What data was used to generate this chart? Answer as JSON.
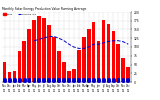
{
  "title": "Monthly Solar Energy Production Value Running Average",
  "months": [
    "Nov\n10",
    "Dec\n10",
    "Jan\n11",
    "Feb\n11",
    "Mar\n11",
    "Apr\n11",
    "May\n11",
    "Jun\n11",
    "Jul\n11",
    "Aug\n11",
    "Sep\n11",
    "Oct\n11",
    "Nov\n11",
    "Dec\n11",
    "Jan\n12",
    "Feb\n12",
    "Mar\n12",
    "Apr\n12",
    "May\n12",
    "Jun\n12",
    "Jul\n12",
    "Aug\n12",
    "Sep\n12",
    "Oct\n12",
    "Nov\n12",
    "Dec\n12"
  ],
  "bar_values": [
    58,
    28,
    32,
    88,
    118,
    152,
    178,
    188,
    182,
    162,
    128,
    88,
    58,
    32,
    38,
    92,
    128,
    152,
    172,
    118,
    178,
    165,
    145,
    108,
    68,
    42
  ],
  "small_values": [
    5,
    3,
    3,
    5,
    5,
    5,
    5,
    5,
    5,
    5,
    5,
    5,
    3,
    3,
    3,
    5,
    5,
    5,
    5,
    5,
    5,
    5,
    5,
    5,
    3,
    3
  ],
  "running_avg": [
    null,
    null,
    null,
    null,
    null,
    null,
    118,
    122,
    126,
    130,
    130,
    125,
    118,
    108,
    100,
    96,
    96,
    100,
    108,
    108,
    112,
    116,
    118,
    118,
    115,
    108
  ],
  "bar_color": "#FF0000",
  "small_color": "#0000CD",
  "avg_color": "#0000CD",
  "ylim": [
    0,
    200
  ],
  "yticks": [
    0,
    25,
    50,
    75,
    100,
    125,
    150,
    175,
    200
  ],
  "ytick_labels": [
    "0",
    "25",
    "50",
    "75",
    "100",
    "125",
    "150",
    "175",
    "200"
  ],
  "background_color": "#FFFFFF",
  "grid_color": "#AAAAAA",
  "legend_labels": [
    "Value",
    "Running Avg"
  ]
}
